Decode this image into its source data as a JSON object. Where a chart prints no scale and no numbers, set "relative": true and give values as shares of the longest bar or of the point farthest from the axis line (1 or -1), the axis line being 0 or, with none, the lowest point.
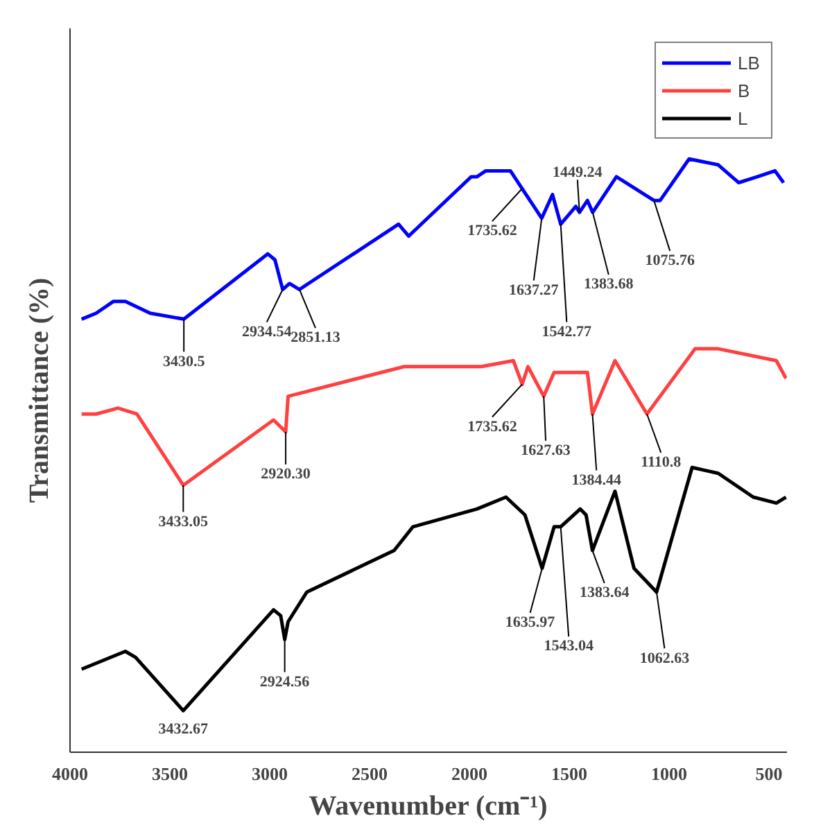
{
  "chart_data": {
    "type": "line",
    "relative": true,
    "xlabel": "Wavenumber (cm⁻¹)",
    "ylabel": "Transmittance (%)",
    "xlim": [
      4000,
      410
    ],
    "xticks": [
      4000,
      3500,
      3000,
      2500,
      2000,
      1500,
      1000,
      500
    ],
    "grid": false,
    "legend": "top right",
    "marker": "none",
    "line_style": "solid",
    "series": [
      {
        "name": "LB",
        "color": "#0000ff",
        "x": [
          3942,
          3869,
          3782,
          3723,
          3599,
          3430,
          3010,
          2974,
          2935,
          2901,
          2851,
          2355,
          2304,
          1991,
          1962,
          1918,
          1795,
          1736,
          1638,
          1584,
          1543,
          1467,
          1449,
          1409,
          1383,
          1264,
          1076,
          1045,
          900,
          754,
          652,
          558,
          470,
          427
        ],
        "values": [
          0.73,
          0.74,
          0.76,
          0.76,
          0.74,
          0.73,
          0.84,
          0.83,
          0.78,
          0.79,
          0.78,
          0.89,
          0.87,
          0.97,
          0.97,
          0.98,
          0.98,
          0.95,
          0.9,
          0.94,
          0.89,
          0.92,
          0.91,
          0.93,
          0.91,
          0.97,
          0.93,
          0.93,
          1.0,
          0.99,
          0.96,
          0.97,
          0.98,
          0.96
        ]
      },
      {
        "name": "B",
        "color": "#ff4040",
        "x": [
          3942,
          3869,
          3760,
          3665,
          3433,
          2981,
          2920,
          2908,
          2326,
          1940,
          1780,
          1736,
          1707,
          1628,
          1576,
          1431,
          1409,
          1384,
          1271,
          1111,
          870,
          754,
          463,
          415
        ],
        "values": [
          0.57,
          0.57,
          0.58,
          0.57,
          0.45,
          0.56,
          0.54,
          0.6,
          0.65,
          0.65,
          0.66,
          0.62,
          0.65,
          0.6,
          0.64,
          0.64,
          0.64,
          0.57,
          0.66,
          0.57,
          0.68,
          0.68,
          0.66,
          0.63
        ]
      },
      {
        "name": "L",
        "color": "#000000",
        "x": [
          3942,
          3723,
          3672,
          3433,
          2981,
          2945,
          2925,
          2908,
          2814,
          2377,
          2283,
          1962,
          1817,
          1722,
          1636,
          1576,
          1543,
          1445,
          1416,
          1384,
          1271,
          1176,
          1063,
          885,
          754,
          579,
          463,
          415
        ],
        "values": [
          0.14,
          0.17,
          0.16,
          0.07,
          0.24,
          0.23,
          0.19,
          0.22,
          0.27,
          0.34,
          0.38,
          0.41,
          0.43,
          0.4,
          0.31,
          0.38,
          0.38,
          0.41,
          0.4,
          0.34,
          0.44,
          0.31,
          0.27,
          0.48,
          0.47,
          0.43,
          0.42,
          0.43
        ]
      }
    ],
    "annotations": [
      {
        "text": "3430.5",
        "x": 3430,
        "y": 0.73
      },
      {
        "text": "2934.54",
        "x": 2935,
        "y": 0.78
      },
      {
        "text": "2851.13",
        "x": 2851,
        "y": 0.78
      },
      {
        "text": "1735.62",
        "x": 1736,
        "y": 0.95
      },
      {
        "text": "1637.27",
        "x": 1638,
        "y": 0.9
      },
      {
        "text": "1542.77",
        "x": 1543,
        "y": 0.89
      },
      {
        "text": "1449.24",
        "x": 1449,
        "y": 0.91
      },
      {
        "text": "1383.68",
        "x": 1383,
        "y": 0.91
      },
      {
        "text": "1075.76",
        "x": 1076,
        "y": 0.93
      },
      {
        "text": "3433.05",
        "x": 3433,
        "y": 0.45
      },
      {
        "text": "2920.30",
        "x": 2920,
        "y": 0.54
      },
      {
        "text": "1735.62",
        "x": 1736,
        "y": 0.62
      },
      {
        "text": "1627.63",
        "x": 1628,
        "y": 0.6
      },
      {
        "text": "1384.44",
        "x": 1384,
        "y": 0.57
      },
      {
        "text": "1110.8",
        "x": 1111,
        "y": 0.57
      },
      {
        "text": "3432.67",
        "x": 3433,
        "y": 0.07
      },
      {
        "text": "2924.56",
        "x": 2925,
        "y": 0.19
      },
      {
        "text": "1635.97",
        "x": 1636,
        "y": 0.31
      },
      {
        "text": "1543.04",
        "x": 1543,
        "y": 0.38
      },
      {
        "text": "1383.64",
        "x": 1384,
        "y": 0.34
      },
      {
        "text": "1062.63",
        "x": 1063,
        "y": 0.27
      }
    ]
  }
}
